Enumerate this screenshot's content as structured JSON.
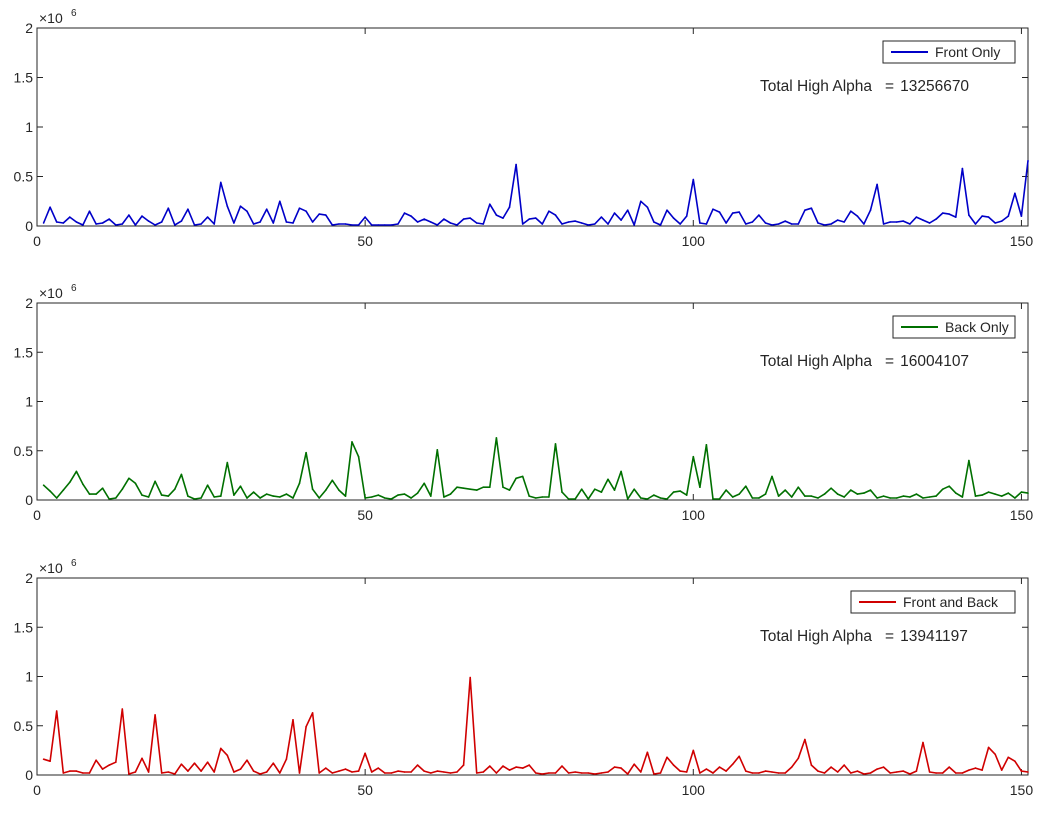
{
  "chart_data": [
    {
      "type": "line",
      "exponent_label": "×10",
      "exponent_power": "6",
      "xlim": [
        0,
        151
      ],
      "ylim": [
        0,
        2000000
      ],
      "xticks": [
        0,
        50,
        100,
        150
      ],
      "xtick_labels": [
        "0",
        "50",
        "100",
        "150"
      ],
      "yticks": [
        0,
        500000,
        1000000,
        1500000,
        2000000
      ],
      "ytick_labels": [
        "0",
        "0.5",
        "1",
        "1.5",
        "2"
      ],
      "series": [
        {
          "name": "Front Only",
          "color": "#0000c8",
          "x": [
            1,
            2,
            3,
            4,
            5,
            6,
            7,
            8,
            9,
            10,
            11,
            12,
            13,
            14,
            15,
            16,
            17,
            18,
            19,
            20,
            21,
            22,
            23,
            24,
            25,
            26,
            27,
            28,
            29,
            30,
            31,
            32,
            33,
            34,
            35,
            36,
            37,
            38,
            39,
            40,
            41,
            42,
            43,
            44,
            45,
            46,
            47,
            48,
            49,
            50,
            51,
            52,
            53,
            54,
            55,
            56,
            57,
            58,
            59,
            60,
            61,
            62,
            63,
            64,
            65,
            66,
            67,
            68,
            69,
            70,
            71,
            72,
            73,
            74,
            75,
            76,
            77,
            78,
            79,
            80,
            81,
            82,
            83,
            84,
            85,
            86,
            87,
            88,
            89,
            90,
            91,
            92,
            93,
            94,
            95,
            96,
            97,
            98,
            99,
            100,
            101,
            102,
            103,
            104,
            105,
            106,
            107,
            108,
            109,
            110,
            111,
            112,
            113,
            114,
            115,
            116,
            117,
            118,
            119,
            120,
            121,
            122,
            123,
            124,
            125,
            126,
            127,
            128,
            129,
            130,
            131,
            132,
            133,
            134,
            135,
            136,
            137,
            138,
            139,
            140,
            141,
            142,
            143,
            144,
            145,
            146,
            147,
            148,
            149,
            150,
            151
          ],
          "values": [
            30000,
            190000,
            40000,
            30000,
            90000,
            40000,
            10000,
            150000,
            20000,
            30000,
            70000,
            10000,
            20000,
            110000,
            10000,
            100000,
            50000,
            10000,
            40000,
            180000,
            10000,
            50000,
            170000,
            10000,
            20000,
            90000,
            20000,
            440000,
            200000,
            30000,
            200000,
            150000,
            20000,
            40000,
            170000,
            30000,
            250000,
            40000,
            30000,
            180000,
            150000,
            40000,
            120000,
            110000,
            10000,
            20000,
            20000,
            10000,
            10000,
            90000,
            10000,
            10000,
            10000,
            10000,
            20000,
            130000,
            100000,
            40000,
            70000,
            40000,
            10000,
            70000,
            30000,
            10000,
            70000,
            80000,
            30000,
            20000,
            220000,
            110000,
            80000,
            190000,
            620000,
            20000,
            70000,
            80000,
            20000,
            150000,
            110000,
            20000,
            40000,
            50000,
            30000,
            10000,
            20000,
            90000,
            20000,
            130000,
            60000,
            160000,
            10000,
            250000,
            190000,
            40000,
            10000,
            160000,
            80000,
            20000,
            100000,
            470000,
            30000,
            20000,
            170000,
            140000,
            30000,
            130000,
            140000,
            20000,
            40000,
            110000,
            30000,
            10000,
            20000,
            50000,
            20000,
            20000,
            160000,
            180000,
            30000,
            10000,
            20000,
            60000,
            40000,
            150000,
            100000,
            20000,
            160000,
            420000,
            20000,
            40000,
            40000,
            50000,
            20000,
            90000,
            60000,
            30000,
            70000,
            130000,
            120000,
            90000,
            580000,
            110000,
            20000,
            100000,
            90000,
            30000,
            50000,
            100000,
            330000,
            100000,
            660000
          ]
        }
      ],
      "annotation": {
        "label": "Total High Alpha",
        "separator": "=",
        "value": "13256670"
      }
    },
    {
      "type": "line",
      "exponent_label": "×10",
      "exponent_power": "6",
      "xlim": [
        0,
        151
      ],
      "ylim": [
        0,
        2000000
      ],
      "xticks": [
        0,
        50,
        100,
        150
      ],
      "xtick_labels": [
        "0",
        "50",
        "100",
        "150"
      ],
      "yticks": [
        0,
        500000,
        1000000,
        1500000,
        2000000
      ],
      "ytick_labels": [
        "0",
        "0.5",
        "1",
        "1.5",
        "2"
      ],
      "series": [
        {
          "name": "Back Only",
          "color": "#007000",
          "x": [
            1,
            2,
            3,
            4,
            5,
            6,
            7,
            8,
            9,
            10,
            11,
            12,
            13,
            14,
            15,
            16,
            17,
            18,
            19,
            20,
            21,
            22,
            23,
            24,
            25,
            26,
            27,
            28,
            29,
            30,
            31,
            32,
            33,
            34,
            35,
            36,
            37,
            38,
            39,
            40,
            41,
            42,
            43,
            44,
            45,
            46,
            47,
            48,
            49,
            50,
            51,
            52,
            53,
            54,
            55,
            56,
            57,
            58,
            59,
            60,
            61,
            62,
            63,
            64,
            65,
            66,
            67,
            68,
            69,
            70,
            71,
            72,
            73,
            74,
            75,
            76,
            77,
            78,
            79,
            80,
            81,
            82,
            83,
            84,
            85,
            86,
            87,
            88,
            89,
            90,
            91,
            92,
            93,
            94,
            95,
            96,
            97,
            98,
            99,
            100,
            101,
            102,
            103,
            104,
            105,
            106,
            107,
            108,
            109,
            110,
            111,
            112,
            113,
            114,
            115,
            116,
            117,
            118,
            119,
            120,
            121,
            122,
            123,
            124,
            125,
            126,
            127,
            128,
            129,
            130,
            131,
            132,
            133,
            134,
            135,
            136,
            137,
            138,
            139,
            140,
            141,
            142,
            143,
            144,
            145,
            146,
            147,
            148,
            149,
            150,
            151
          ],
          "values": [
            150000,
            90000,
            20000,
            100000,
            180000,
            290000,
            160000,
            60000,
            60000,
            120000,
            10000,
            20000,
            110000,
            220000,
            170000,
            50000,
            30000,
            190000,
            50000,
            40000,
            110000,
            260000,
            40000,
            10000,
            20000,
            150000,
            30000,
            40000,
            380000,
            50000,
            140000,
            20000,
            80000,
            20000,
            60000,
            40000,
            30000,
            60000,
            20000,
            170000,
            480000,
            110000,
            20000,
            100000,
            200000,
            100000,
            40000,
            590000,
            440000,
            20000,
            30000,
            50000,
            20000,
            10000,
            50000,
            60000,
            20000,
            70000,
            170000,
            40000,
            510000,
            30000,
            60000,
            130000,
            120000,
            110000,
            100000,
            130000,
            130000,
            630000,
            130000,
            100000,
            220000,
            240000,
            40000,
            20000,
            30000,
            30000,
            570000,
            80000,
            10000,
            10000,
            110000,
            10000,
            110000,
            80000,
            210000,
            100000,
            290000,
            10000,
            110000,
            20000,
            10000,
            50000,
            20000,
            10000,
            80000,
            90000,
            50000,
            440000,
            130000,
            560000,
            10000,
            10000,
            100000,
            30000,
            60000,
            140000,
            20000,
            20000,
            60000,
            240000,
            40000,
            100000,
            30000,
            130000,
            40000,
            40000,
            20000,
            60000,
            120000,
            60000,
            30000,
            100000,
            60000,
            70000,
            100000,
            20000,
            40000,
            20000,
            20000,
            40000,
            30000,
            60000,
            20000,
            30000,
            40000,
            110000,
            140000,
            70000,
            30000,
            400000,
            40000,
            50000,
            80000,
            60000,
            40000,
            70000,
            20000,
            80000,
            70000
          ]
        }
      ],
      "annotation": {
        "label": "Total High Alpha",
        "separator": "=",
        "value": "16004107"
      }
    },
    {
      "type": "line",
      "exponent_label": "×10",
      "exponent_power": "6",
      "xlim": [
        0,
        151
      ],
      "ylim": [
        0,
        2000000
      ],
      "xticks": [
        0,
        50,
        100,
        150
      ],
      "xtick_labels": [
        "0",
        "50",
        "100",
        "150"
      ],
      "yticks": [
        0,
        500000,
        1000000,
        1500000,
        2000000
      ],
      "ytick_labels": [
        "0",
        "0.5",
        "1",
        "1.5",
        "2"
      ],
      "series": [
        {
          "name": "Front and Back",
          "color": "#d00000",
          "x": [
            1,
            2,
            3,
            4,
            5,
            6,
            7,
            8,
            9,
            10,
            11,
            12,
            13,
            14,
            15,
            16,
            17,
            18,
            19,
            20,
            21,
            22,
            23,
            24,
            25,
            26,
            27,
            28,
            29,
            30,
            31,
            32,
            33,
            34,
            35,
            36,
            37,
            38,
            39,
            40,
            41,
            42,
            43,
            44,
            45,
            46,
            47,
            48,
            49,
            50,
            51,
            52,
            53,
            54,
            55,
            56,
            57,
            58,
            59,
            60,
            61,
            62,
            63,
            64,
            65,
            66,
            67,
            68,
            69,
            70,
            71,
            72,
            73,
            74,
            75,
            76,
            77,
            78,
            79,
            80,
            81,
            82,
            83,
            84,
            85,
            86,
            87,
            88,
            89,
            90,
            91,
            92,
            93,
            94,
            95,
            96,
            97,
            98,
            99,
            100,
            101,
            102,
            103,
            104,
            105,
            106,
            107,
            108,
            109,
            110,
            111,
            112,
            113,
            114,
            115,
            116,
            117,
            118,
            119,
            120,
            121,
            122,
            123,
            124,
            125,
            126,
            127,
            128,
            129,
            130,
            131,
            132,
            133,
            134,
            135,
            136,
            137,
            138,
            139,
            140,
            141,
            142,
            143,
            144,
            145,
            146,
            147,
            148,
            149,
            150,
            151
          ],
          "values": [
            160000,
            140000,
            650000,
            20000,
            40000,
            40000,
            20000,
            20000,
            150000,
            60000,
            100000,
            130000,
            670000,
            10000,
            30000,
            170000,
            30000,
            610000,
            20000,
            30000,
            10000,
            110000,
            40000,
            120000,
            40000,
            130000,
            30000,
            270000,
            200000,
            30000,
            60000,
            150000,
            40000,
            10000,
            30000,
            120000,
            20000,
            160000,
            560000,
            20000,
            490000,
            630000,
            20000,
            70000,
            20000,
            40000,
            60000,
            30000,
            40000,
            220000,
            30000,
            70000,
            20000,
            20000,
            40000,
            30000,
            30000,
            100000,
            40000,
            20000,
            40000,
            30000,
            20000,
            30000,
            100000,
            990000,
            20000,
            30000,
            90000,
            20000,
            90000,
            50000,
            80000,
            70000,
            100000,
            20000,
            10000,
            20000,
            20000,
            90000,
            20000,
            30000,
            20000,
            20000,
            10000,
            20000,
            30000,
            80000,
            70000,
            10000,
            110000,
            30000,
            230000,
            10000,
            20000,
            180000,
            100000,
            40000,
            30000,
            250000,
            20000,
            60000,
            20000,
            80000,
            40000,
            110000,
            190000,
            40000,
            20000,
            20000,
            40000,
            30000,
            20000,
            20000,
            80000,
            170000,
            360000,
            100000,
            40000,
            20000,
            80000,
            30000,
            100000,
            20000,
            40000,
            10000,
            20000,
            60000,
            80000,
            20000,
            30000,
            40000,
            10000,
            40000,
            330000,
            30000,
            20000,
            20000,
            80000,
            20000,
            20000,
            50000,
            70000,
            50000,
            280000,
            210000,
            50000,
            180000,
            140000,
            40000,
            30000
          ]
        }
      ],
      "annotation": {
        "label": "Total High Alpha",
        "separator": "=",
        "value": "13941197"
      }
    }
  ]
}
